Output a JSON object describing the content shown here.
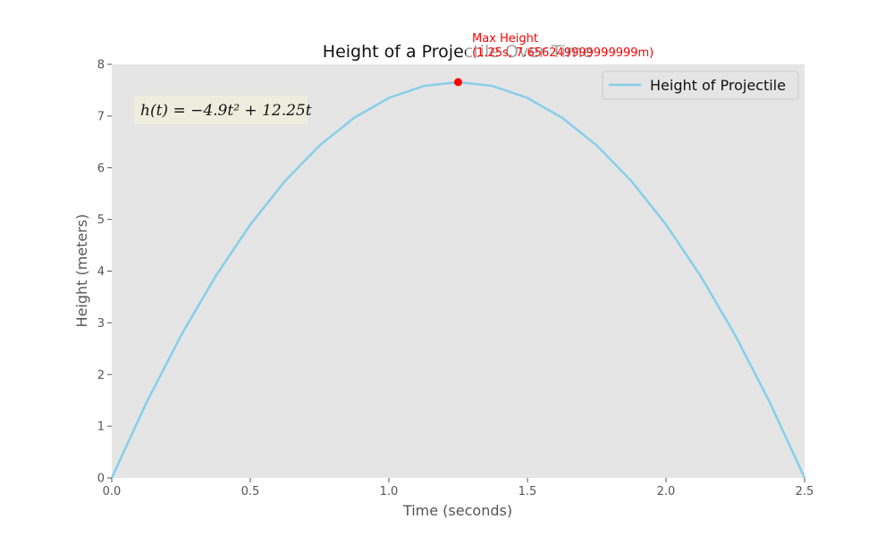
{
  "chart_data": {
    "type": "line",
    "title": "Height of a Projectile Over Time",
    "xlabel": "Time (seconds)",
    "ylabel": "Height (meters)",
    "xlim": [
      0,
      2.5
    ],
    "ylim": [
      0,
      8
    ],
    "x_ticks": [
      "0.0",
      "0.5",
      "1.0",
      "1.5",
      "2.0",
      "2.5"
    ],
    "y_ticks": [
      "0",
      "1",
      "2",
      "3",
      "4",
      "5",
      "6",
      "7",
      "8"
    ],
    "grid": false,
    "legend_placement": "top-right",
    "series": [
      {
        "name": "Height of Projectile",
        "color": "#87ceeb",
        "equation": "h(t) = -4.9t^2 + 12.25t",
        "x": [
          0,
          0.125,
          0.25,
          0.375,
          0.5,
          0.625,
          0.75,
          0.875,
          1.0,
          1.125,
          1.25,
          1.375,
          1.5,
          1.625,
          1.75,
          1.875,
          2.0,
          2.125,
          2.25,
          2.375,
          2.5
        ],
        "y": [
          0,
          1.455,
          2.756,
          3.905,
          4.9,
          5.742,
          6.431,
          6.967,
          7.35,
          7.58,
          7.656,
          7.58,
          7.35,
          6.967,
          6.431,
          5.742,
          4.9,
          3.905,
          2.756,
          1.455,
          0
        ]
      }
    ],
    "max_point": {
      "x": 1.25,
      "y": 7.65625,
      "color": "#ff0000"
    },
    "annotations": [
      {
        "text_line1": "Max Height",
        "text_line2": "(1.25s, 7.656249999999999m)",
        "color": "#ff0000"
      }
    ],
    "formula_box": {
      "text": "h(t) = −4.9t² + 12.25t"
    },
    "colors": {
      "plot_background": "#e5e5e5",
      "line": "#87ceeb",
      "marker": "#ff0000",
      "formula_bg": "#eeeedf"
    }
  }
}
